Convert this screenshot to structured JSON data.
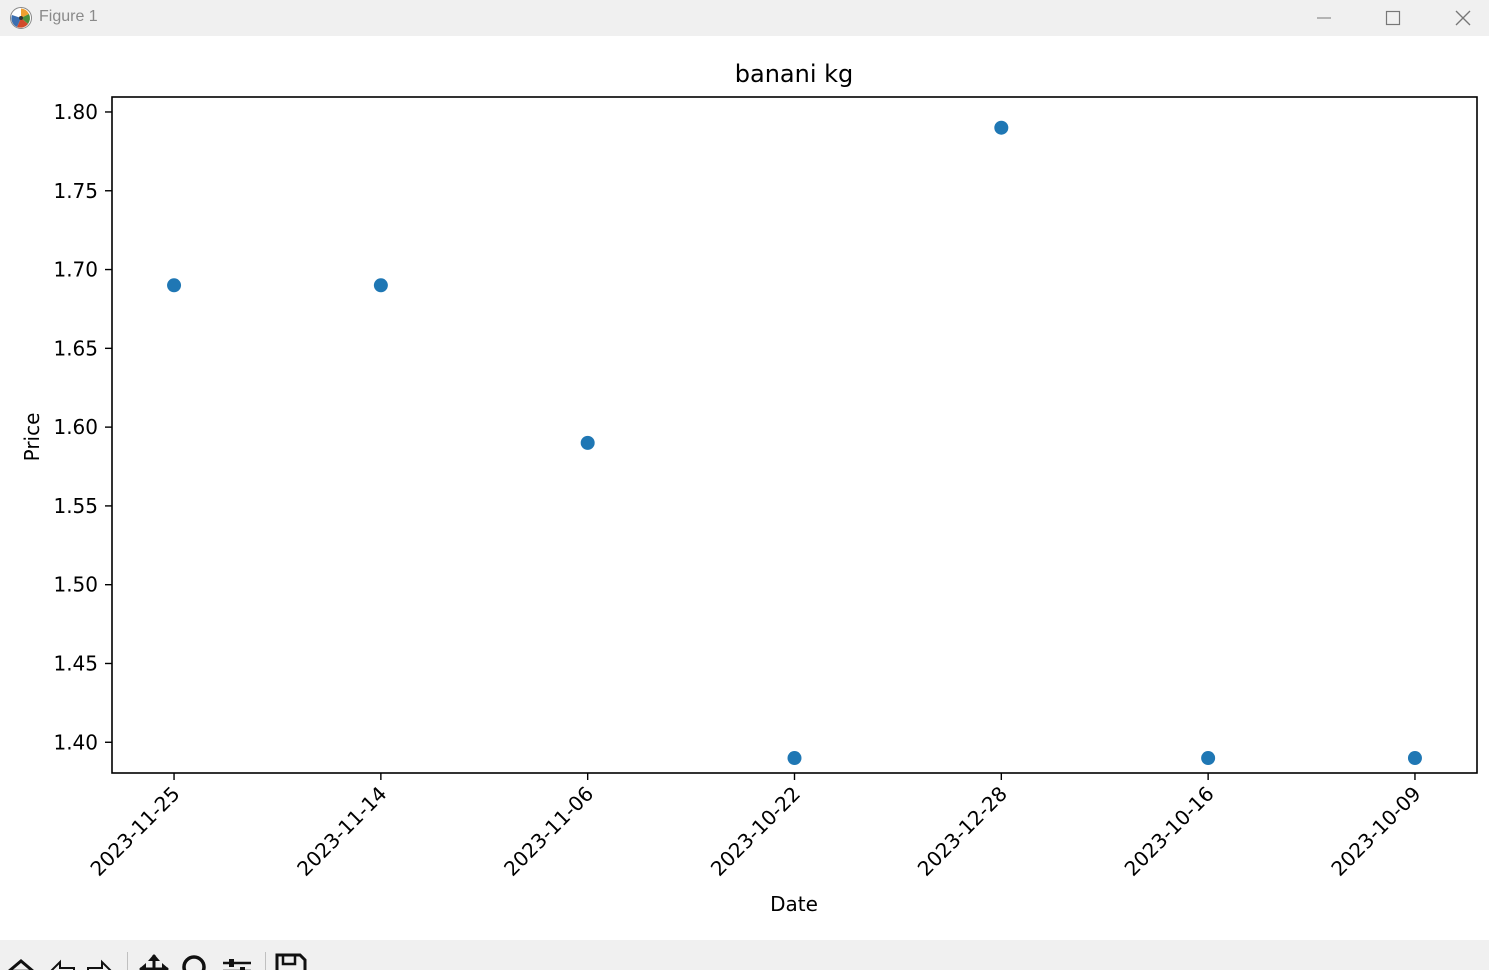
{
  "window": {
    "title": "Figure 1"
  },
  "chart_data": {
    "type": "scatter",
    "title": "banani kg",
    "xlabel": "Date",
    "ylabel": "Price",
    "categories": [
      "2023-11-25",
      "2023-11-14",
      "2023-11-06",
      "2023-10-22",
      "2023-12-28",
      "2023-10-16",
      "2023-10-09"
    ],
    "values": [
      1.69,
      1.69,
      1.59,
      1.39,
      1.79,
      1.39,
      1.39
    ],
    "ylim": [
      1.3805,
      1.8095
    ],
    "yticks": [
      "1.40",
      "1.45",
      "1.50",
      "1.55",
      "1.60",
      "1.65",
      "1.70",
      "1.75",
      "1.80"
    ],
    "x_tick_rotation": 45,
    "marker_color": "#1f77b4",
    "grid": false,
    "legend": false
  },
  "toolbar": {
    "icons": [
      "home-icon",
      "back-icon",
      "forward-icon",
      "pan-icon",
      "zoom-icon",
      "configure-icon",
      "save-icon"
    ]
  }
}
